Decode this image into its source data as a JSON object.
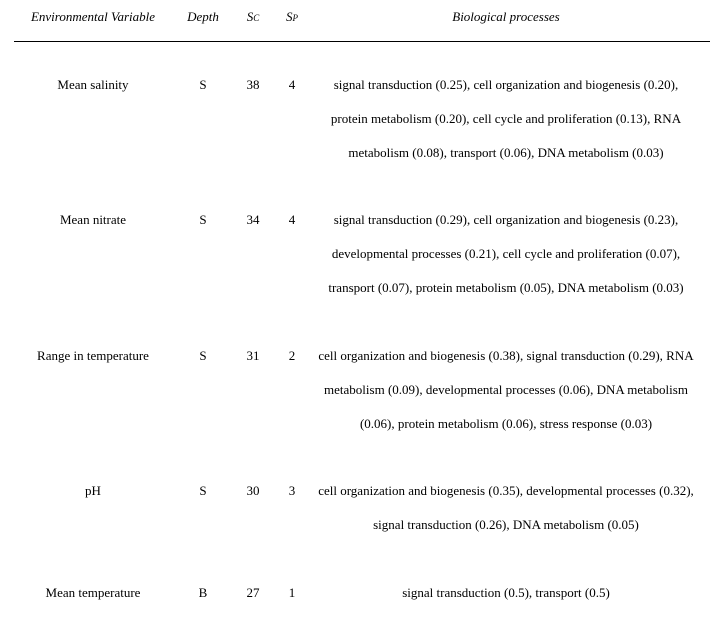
{
  "header": {
    "variable": "Environmental Variable",
    "depth": "Depth",
    "sc_main": "S",
    "sc_sub": "C",
    "sp_main": "S",
    "sp_sub": "P",
    "bio": "Biological processes"
  },
  "rows": [
    {
      "variable": "Mean salinity",
      "depth": "S",
      "sc": "38",
      "sp": "4",
      "bio": "signal transduction (0.25), cell organization and biogenesis (0.20), protein metabolism (0.20), cell cycle and proliferation (0.13), RNA metabolism (0.08), transport (0.06), DNA metabolism (0.03)"
    },
    {
      "variable": "Mean nitrate",
      "depth": "S",
      "sc": "34",
      "sp": "4",
      "bio": "signal transduction (0.29), cell organization and biogenesis (0.23), developmental processes (0.21), cell cycle and proliferation (0.07), transport (0.07), protein metabolism (0.05), DNA metabolism (0.03)"
    },
    {
      "variable": "Range in temperature",
      "depth": "S",
      "sc": "31",
      "sp": "2",
      "bio": "cell organization and biogenesis (0.38), signal transduction (0.29), RNA metabolism (0.09), developmental processes (0.06), DNA metabolism (0.06), protein metabolism (0.06), stress response (0.03)"
    },
    {
      "variable": "pH",
      "depth": "S",
      "sc": "30",
      "sp": "3",
      "bio": "cell organization and biogenesis (0.35), developmental processes (0.32), signal transduction (0.26), DNA metabolism (0.05)"
    },
    {
      "variable": "Mean temperature",
      "depth": "B",
      "sc": "27",
      "sp": "1",
      "bio": "signal transduction (0.5), transport (0.5)"
    }
  ]
}
